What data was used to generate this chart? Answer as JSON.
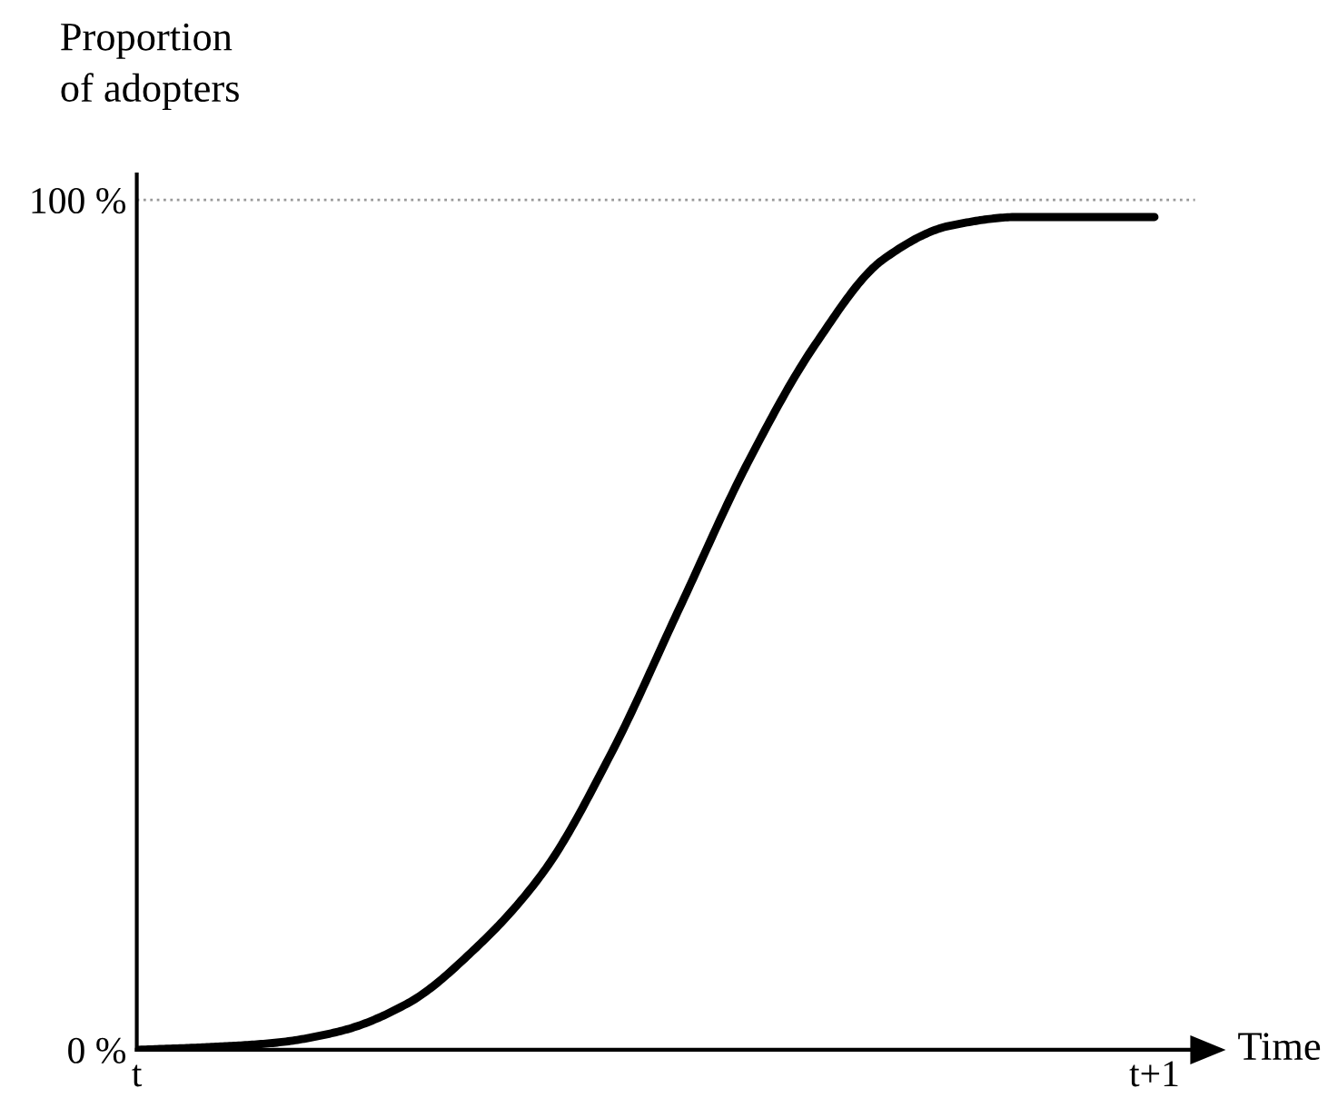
{
  "chart_data": {
    "type": "line",
    "ylabel": "Proportion\nof adopters",
    "xlabel": "Time",
    "categories": [
      "t",
      null,
      null,
      null,
      null,
      null,
      null,
      null,
      null,
      null,
      null,
      null,
      null,
      null,
      null,
      "t+1"
    ],
    "series": [
      {
        "color": "#000000",
        "values": [
          0,
          0.3,
          0.8,
          2.2,
          5.5,
          12,
          21,
          35,
          52,
          69,
          83,
          93,
          97,
          98,
          98,
          98
        ]
      }
    ],
    "ylim": [
      0,
      103
    ],
    "yticks": [
      {
        "value": 0,
        "label": "0 %"
      },
      {
        "value": 100,
        "label": "100 %"
      }
    ],
    "ref_lines": [
      {
        "axis": "y",
        "value": 100,
        "label": null,
        "color": "#999999",
        "line_style": "dotted"
      }
    ],
    "grid": false,
    "legend": false,
    "marker": "none",
    "line_style": "solid"
  }
}
